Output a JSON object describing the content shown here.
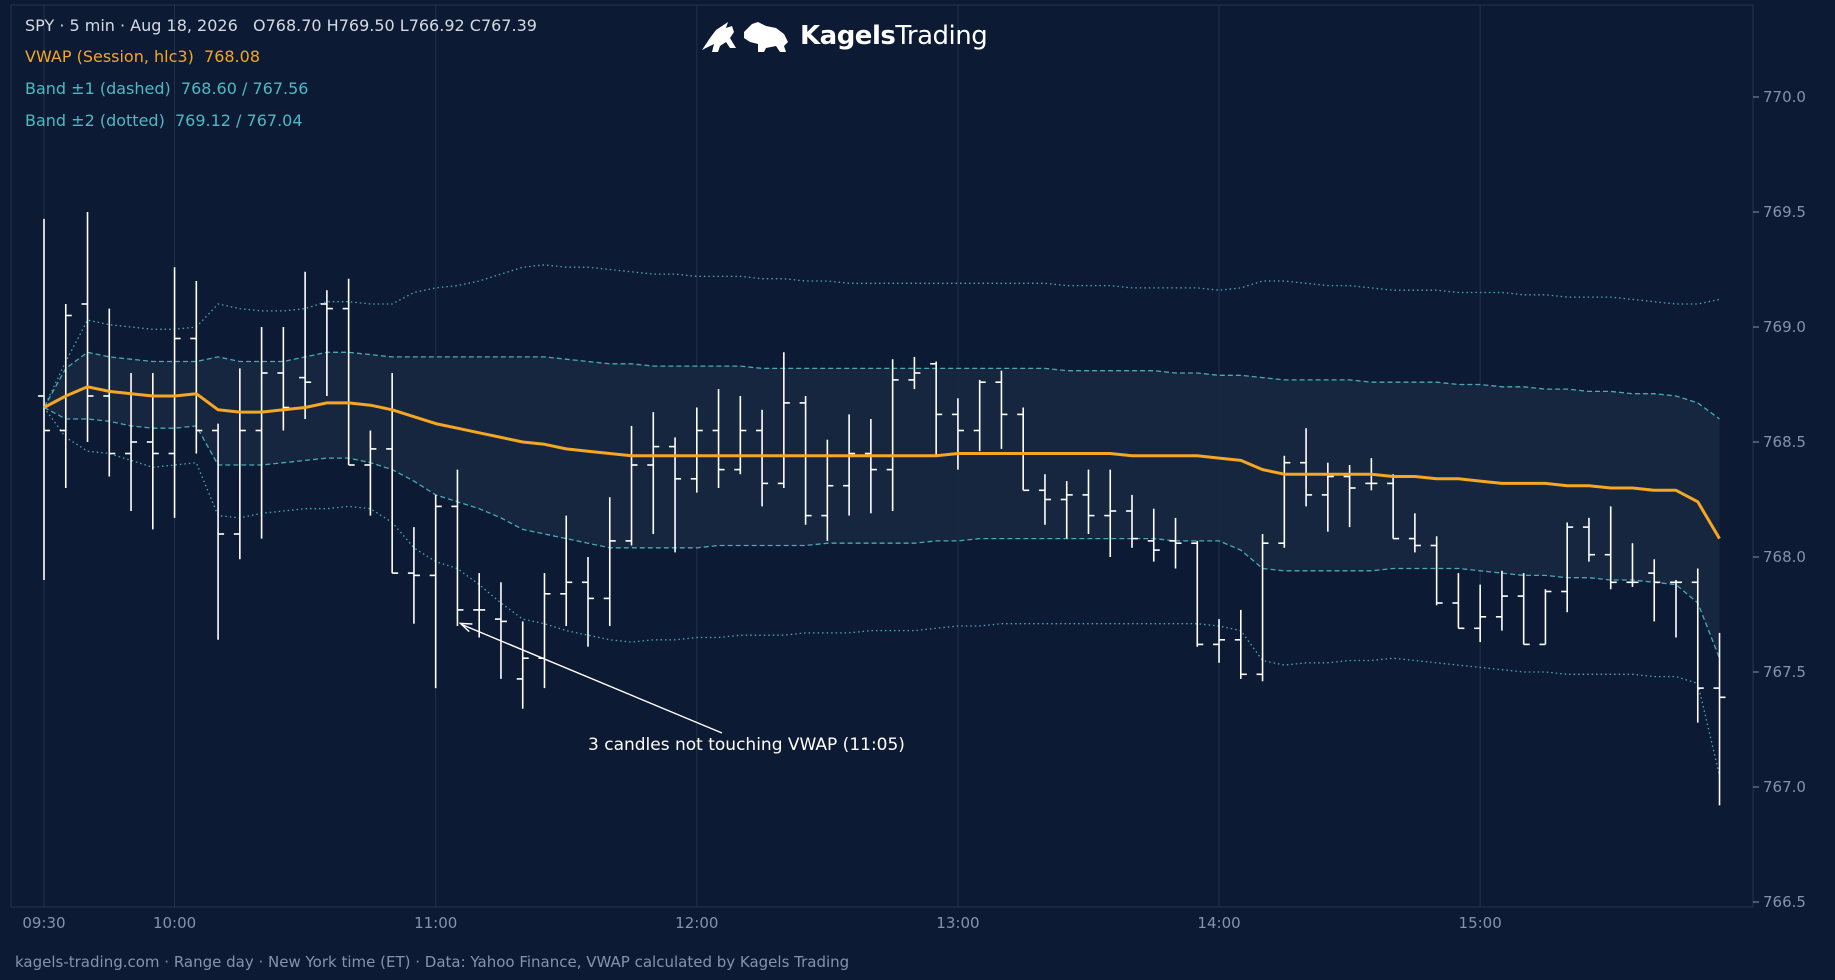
{
  "header": {
    "ohlc_line": "SPY · 5 min · Aug 18, 2026   O768.70 H769.50 L766.92 C767.39",
    "vwap_line": "VWAP (Session, hlc3)  768.08",
    "band1_line": "Band ±1 (dashed)  768.60 / 767.56",
    "band2_line": "Band ±2 (dotted)  769.12 / 767.04"
  },
  "brand": {
    "bold": "Kagels",
    "regular": "Trading",
    "logo_icon": "bull-bear-icon"
  },
  "footer": "kagels-trading.com · Range day · New York time (ET) · Data: Yahoo Finance, VWAP calculated by Kagels Trading",
  "colors": {
    "background": "#0d1a33",
    "vwap": "#f5a623",
    "bands": "#4fb8c4",
    "candles": "#ffffff",
    "band_fill": "#16283f",
    "text": "#d4dae4",
    "axis_text": "#8493ad"
  },
  "chart_data": {
    "type": "ohlc",
    "symbol": "SPY",
    "interval": "5 min",
    "date": "Aug 18, 2026",
    "ylim": [
      766.5,
      770.2
    ],
    "y_ticks": [
      "766.5",
      "767.0",
      "767.5",
      "768.0",
      "768.5",
      "769.0",
      "769.5",
      "770.0"
    ],
    "x_ticks": [
      {
        "label": "09:30",
        "t": "09:30"
      },
      {
        "label": "10:00",
        "t": "10:00"
      },
      {
        "label": "11:00",
        "t": "11:00"
      },
      {
        "label": "12:00",
        "t": "12:00"
      },
      {
        "label": "13:00",
        "t": "13:00"
      },
      {
        "label": "14:00",
        "t": "14:00"
      },
      {
        "label": "15:00",
        "t": "15:00"
      }
    ],
    "grid": true,
    "candles": [
      {
        "t": "09:30",
        "o": 768.7,
        "h": 769.47,
        "l": 767.9,
        "c": 768.55
      },
      {
        "t": "09:35",
        "o": 768.55,
        "h": 769.1,
        "l": 768.3,
        "c": 769.05
      },
      {
        "t": "09:40",
        "o": 769.1,
        "h": 769.5,
        "l": 768.5,
        "c": 768.7
      },
      {
        "t": "09:45",
        "o": 768.7,
        "h": 769.08,
        "l": 768.35,
        "c": 768.45
      },
      {
        "t": "09:50",
        "o": 768.45,
        "h": 768.8,
        "l": 768.2,
        "c": 768.5
      },
      {
        "t": "09:55",
        "o": 768.5,
        "h": 768.8,
        "l": 768.12,
        "c": 768.45
      },
      {
        "t": "10:00",
        "o": 768.45,
        "h": 769.26,
        "l": 768.17,
        "c": 768.95
      },
      {
        "t": "10:05",
        "o": 768.95,
        "h": 769.2,
        "l": 768.45,
        "c": 768.55
      },
      {
        "t": "10:10",
        "o": 768.55,
        "h": 768.58,
        "l": 767.64,
        "c": 768.1
      },
      {
        "t": "10:15",
        "o": 768.1,
        "h": 768.82,
        "l": 767.99,
        "c": 768.55
      },
      {
        "t": "10:20",
        "o": 768.55,
        "h": 769.0,
        "l": 768.08,
        "c": 768.8
      },
      {
        "t": "10:25",
        "o": 768.8,
        "h": 769.0,
        "l": 768.55,
        "c": 768.65
      },
      {
        "t": "10:30",
        "o": 768.78,
        "h": 769.24,
        "l": 768.6,
        "c": 768.76
      },
      {
        "t": "10:35",
        "o": 769.1,
        "h": 769.16,
        "l": 768.7,
        "c": 769.08
      },
      {
        "t": "10:40",
        "o": 769.08,
        "h": 769.21,
        "l": 768.4,
        "c": 768.4
      },
      {
        "t": "10:45",
        "o": 768.4,
        "h": 768.55,
        "l": 768.18,
        "c": 768.47
      },
      {
        "t": "10:50",
        "o": 768.47,
        "h": 768.8,
        "l": 767.93,
        "c": 767.93
      },
      {
        "t": "10:55",
        "o": 767.93,
        "h": 768.13,
        "l": 767.71,
        "c": 767.92
      },
      {
        "t": "11:00",
        "o": 767.92,
        "h": 768.27,
        "l": 767.43,
        "c": 768.22
      },
      {
        "t": "11:05",
        "o": 768.22,
        "h": 768.38,
        "l": 767.7,
        "c": 767.77
      },
      {
        "t": "11:10",
        "o": 767.77,
        "h": 767.93,
        "l": 767.65,
        "c": 767.77
      },
      {
        "t": "11:15",
        "o": 767.73,
        "h": 767.89,
        "l": 767.47,
        "c": 767.72
      },
      {
        "t": "11:20",
        "o": 767.47,
        "h": 767.72,
        "l": 767.34,
        "c": 767.56
      },
      {
        "t": "11:25",
        "o": 767.56,
        "h": 767.93,
        "l": 767.43,
        "c": 767.84
      },
      {
        "t": "11:30",
        "o": 767.84,
        "h": 768.18,
        "l": 767.7,
        "c": 767.89
      },
      {
        "t": "11:35",
        "o": 767.89,
        "h": 768.0,
        "l": 767.61,
        "c": 767.82
      },
      {
        "t": "11:40",
        "o": 767.82,
        "h": 768.26,
        "l": 767.7,
        "c": 768.07
      },
      {
        "t": "11:45",
        "o": 768.07,
        "h": 768.57,
        "l": 768.05,
        "c": 768.4
      },
      {
        "t": "11:50",
        "o": 768.4,
        "h": 768.63,
        "l": 768.1,
        "c": 768.48
      },
      {
        "t": "11:55",
        "o": 768.48,
        "h": 768.52,
        "l": 768.02,
        "c": 768.34
      },
      {
        "t": "12:00",
        "o": 768.34,
        "h": 768.65,
        "l": 768.28,
        "c": 768.55
      },
      {
        "t": "12:05",
        "o": 768.55,
        "h": 768.73,
        "l": 768.3,
        "c": 768.38
      },
      {
        "t": "12:10",
        "o": 768.38,
        "h": 768.7,
        "l": 768.36,
        "c": 768.55
      },
      {
        "t": "12:15",
        "o": 768.55,
        "h": 768.64,
        "l": 768.22,
        "c": 768.32
      },
      {
        "t": "12:20",
        "o": 768.32,
        "h": 768.89,
        "l": 768.3,
        "c": 768.67
      },
      {
        "t": "12:25",
        "o": 768.67,
        "h": 768.7,
        "l": 768.14,
        "c": 768.18
      },
      {
        "t": "12:30",
        "o": 768.18,
        "h": 768.51,
        "l": 768.07,
        "c": 768.31
      },
      {
        "t": "12:35",
        "o": 768.31,
        "h": 768.62,
        "l": 768.18,
        "c": 768.45
      },
      {
        "t": "12:40",
        "o": 768.45,
        "h": 768.6,
        "l": 768.19,
        "c": 768.38
      },
      {
        "t": "12:45",
        "o": 768.38,
        "h": 768.86,
        "l": 768.2,
        "c": 768.77
      },
      {
        "t": "12:50",
        "o": 768.77,
        "h": 768.87,
        "l": 768.73,
        "c": 768.8
      },
      {
        "t": "12:55",
        "o": 768.84,
        "h": 768.85,
        "l": 768.44,
        "c": 768.62
      },
      {
        "t": "13:00",
        "o": 768.62,
        "h": 768.69,
        "l": 768.38,
        "c": 768.55
      },
      {
        "t": "13:05",
        "o": 768.55,
        "h": 768.77,
        "l": 768.46,
        "c": 768.76
      },
      {
        "t": "13:10",
        "o": 768.76,
        "h": 768.81,
        "l": 768.47,
        "c": 768.62
      },
      {
        "t": "13:15",
        "o": 768.62,
        "h": 768.65,
        "l": 768.29,
        "c": 768.29
      },
      {
        "t": "13:20",
        "o": 768.29,
        "h": 768.36,
        "l": 768.14,
        "c": 768.25
      },
      {
        "t": "13:25",
        "o": 768.25,
        "h": 768.33,
        "l": 768.08,
        "c": 768.27
      },
      {
        "t": "13:30",
        "o": 768.27,
        "h": 768.38,
        "l": 768.1,
        "c": 768.18
      },
      {
        "t": "13:35",
        "o": 768.18,
        "h": 768.38,
        "l": 768.0,
        "c": 768.2
      },
      {
        "t": "13:40",
        "o": 768.2,
        "h": 768.27,
        "l": 768.04,
        "c": 768.08
      },
      {
        "t": "13:45",
        "o": 768.07,
        "h": 768.21,
        "l": 767.98,
        "c": 768.03
      },
      {
        "t": "13:50",
        "o": 768.07,
        "h": 768.17,
        "l": 767.95,
        "c": 768.06
      },
      {
        "t": "13:55",
        "o": 768.06,
        "h": 768.07,
        "l": 767.61,
        "c": 767.62
      },
      {
        "t": "14:00",
        "o": 767.62,
        "h": 767.73,
        "l": 767.54,
        "c": 767.64
      },
      {
        "t": "14:05",
        "o": 767.64,
        "h": 767.77,
        "l": 767.47,
        "c": 767.49
      },
      {
        "t": "14:10",
        "o": 767.49,
        "h": 768.1,
        "l": 767.46,
        "c": 768.06
      },
      {
        "t": "14:15",
        "o": 768.06,
        "h": 768.44,
        "l": 768.04,
        "c": 768.41
      },
      {
        "t": "14:20",
        "o": 768.41,
        "h": 768.56,
        "l": 768.22,
        "c": 768.27
      },
      {
        "t": "14:25",
        "o": 768.27,
        "h": 768.41,
        "l": 768.11,
        "c": 768.35
      },
      {
        "t": "14:30",
        "o": 768.35,
        "h": 768.4,
        "l": 768.13,
        "c": 768.3
      },
      {
        "t": "14:35",
        "o": 768.32,
        "h": 768.43,
        "l": 768.29,
        "c": 768.32
      },
      {
        "t": "14:40",
        "o": 768.32,
        "h": 768.36,
        "l": 768.08,
        "c": 768.08
      },
      {
        "t": "14:45",
        "o": 768.08,
        "h": 768.19,
        "l": 768.02,
        "c": 768.05
      },
      {
        "t": "14:50",
        "o": 768.05,
        "h": 768.09,
        "l": 767.79,
        "c": 767.8
      },
      {
        "t": "14:55",
        "o": 767.8,
        "h": 767.93,
        "l": 767.69,
        "c": 767.69
      },
      {
        "t": "15:00",
        "o": 767.69,
        "h": 767.88,
        "l": 767.63,
        "c": 767.74
      },
      {
        "t": "15:05",
        "o": 767.74,
        "h": 767.94,
        "l": 767.68,
        "c": 767.83
      },
      {
        "t": "15:10",
        "o": 767.83,
        "h": 767.93,
        "l": 767.62,
        "c": 767.62
      },
      {
        "t": "15:15",
        "o": 767.62,
        "h": 767.86,
        "l": 767.62,
        "c": 767.85
      },
      {
        "t": "15:20",
        "o": 767.85,
        "h": 768.15,
        "l": 767.76,
        "c": 768.13
      },
      {
        "t": "15:25",
        "o": 768.13,
        "h": 768.17,
        "l": 767.98,
        "c": 768.01
      },
      {
        "t": "15:30",
        "o": 768.01,
        "h": 768.22,
        "l": 767.86,
        "c": 767.89
      },
      {
        "t": "15:35",
        "o": 767.89,
        "h": 768.06,
        "l": 767.87,
        "c": 767.89
      },
      {
        "t": "15:40",
        "o": 767.93,
        "h": 767.99,
        "l": 767.72,
        "c": 767.89
      },
      {
        "t": "15:45",
        "o": 767.89,
        "h": 767.9,
        "l": 767.65,
        "c": 767.89
      },
      {
        "t": "15:50",
        "o": 767.89,
        "h": 767.95,
        "l": 767.28,
        "c": 767.43
      },
      {
        "t": "15:55",
        "o": 767.43,
        "h": 767.67,
        "l": 766.92,
        "c": 767.39
      }
    ],
    "vwap": [
      768.65,
      768.7,
      768.74,
      768.72,
      768.71,
      768.7,
      768.7,
      768.71,
      768.64,
      768.63,
      768.63,
      768.64,
      768.65,
      768.67,
      768.67,
      768.66,
      768.64,
      768.61,
      768.58,
      768.56,
      768.54,
      768.52,
      768.5,
      768.49,
      768.47,
      768.46,
      768.45,
      768.44,
      768.44,
      768.44,
      768.44,
      768.44,
      768.44,
      768.44,
      768.44,
      768.44,
      768.44,
      768.44,
      768.44,
      768.44,
      768.44,
      768.44,
      768.45,
      768.45,
      768.45,
      768.45,
      768.45,
      768.45,
      768.45,
      768.45,
      768.44,
      768.44,
      768.44,
      768.44,
      768.43,
      768.42,
      768.38,
      768.36,
      768.36,
      768.36,
      768.36,
      768.36,
      768.35,
      768.35,
      768.34,
      768.34,
      768.33,
      768.32,
      768.32,
      768.32,
      768.31,
      768.31,
      768.3,
      768.3,
      768.29,
      768.29,
      768.24,
      768.08
    ],
    "band1_upper": [
      768.65,
      768.82,
      768.89,
      768.87,
      768.86,
      768.85,
      768.85,
      768.85,
      768.87,
      768.85,
      768.85,
      768.85,
      768.87,
      768.89,
      768.89,
      768.88,
      768.87,
      768.87,
      768.87,
      768.87,
      768.87,
      768.87,
      768.87,
      768.87,
      768.86,
      768.85,
      768.84,
      768.84,
      768.83,
      768.83,
      768.83,
      768.83,
      768.83,
      768.82,
      768.82,
      768.82,
      768.82,
      768.82,
      768.82,
      768.82,
      768.82,
      768.82,
      768.82,
      768.82,
      768.82,
      768.82,
      768.82,
      768.81,
      768.81,
      768.81,
      768.81,
      768.81,
      768.8,
      768.8,
      768.79,
      768.79,
      768.78,
      768.77,
      768.77,
      768.77,
      768.77,
      768.76,
      768.76,
      768.76,
      768.76,
      768.75,
      768.75,
      768.74,
      768.74,
      768.73,
      768.73,
      768.72,
      768.72,
      768.71,
      768.71,
      768.7,
      768.67,
      768.6
    ],
    "band1_lower": [
      768.65,
      768.6,
      768.6,
      768.59,
      768.57,
      768.56,
      768.56,
      768.57,
      768.4,
      768.4,
      768.4,
      768.41,
      768.42,
      768.43,
      768.43,
      768.41,
      768.38,
      768.33,
      768.27,
      768.24,
      768.21,
      768.17,
      768.12,
      768.1,
      768.08,
      768.06,
      768.04,
      768.04,
      768.04,
      768.04,
      768.04,
      768.05,
      768.05,
      768.05,
      768.05,
      768.05,
      768.06,
      768.06,
      768.06,
      768.06,
      768.06,
      768.07,
      768.07,
      768.08,
      768.08,
      768.08,
      768.08,
      768.08,
      768.08,
      768.08,
      768.08,
      768.08,
      768.07,
      768.07,
      768.07,
      768.03,
      767.95,
      767.94,
      767.94,
      767.94,
      767.94,
      767.94,
      767.95,
      767.95,
      767.95,
      767.95,
      767.94,
      767.93,
      767.92,
      767.92,
      767.91,
      767.91,
      767.9,
      767.9,
      767.89,
      767.88,
      767.8,
      767.56
    ],
    "band2_upper": [
      768.65,
      768.85,
      769.03,
      769.01,
      769.0,
      768.99,
      768.99,
      769.0,
      769.1,
      769.08,
      769.07,
      769.07,
      769.08,
      769.11,
      769.11,
      769.1,
      769.1,
      769.15,
      769.17,
      769.18,
      769.2,
      769.23,
      769.26,
      769.27,
      769.26,
      769.26,
      769.25,
      769.24,
      769.23,
      769.23,
      769.22,
      769.22,
      769.22,
      769.21,
      769.21,
      769.2,
      769.2,
      769.19,
      769.19,
      769.19,
      769.19,
      769.19,
      769.19,
      769.19,
      769.19,
      769.19,
      769.19,
      769.18,
      769.18,
      769.18,
      769.17,
      769.17,
      769.17,
      769.17,
      769.16,
      769.17,
      769.2,
      769.2,
      769.19,
      769.18,
      769.18,
      769.17,
      769.16,
      769.16,
      769.16,
      769.15,
      769.15,
      769.15,
      769.14,
      769.14,
      769.13,
      769.13,
      769.13,
      769.12,
      769.11,
      769.1,
      769.1,
      769.12
    ],
    "band2_lower": [
      768.65,
      768.52,
      768.46,
      768.45,
      768.42,
      768.39,
      768.4,
      768.41,
      768.18,
      768.17,
      768.19,
      768.2,
      768.21,
      768.21,
      768.22,
      768.21,
      768.15,
      768.04,
      767.98,
      767.95,
      767.88,
      767.8,
      767.73,
      767.71,
      767.68,
      767.66,
      767.64,
      767.63,
      767.64,
      767.64,
      767.65,
      767.65,
      767.66,
      767.66,
      767.66,
      767.67,
      767.67,
      767.67,
      767.68,
      767.68,
      767.68,
      767.69,
      767.7,
      767.7,
      767.71,
      767.71,
      767.71,
      767.71,
      767.71,
      767.71,
      767.71,
      767.71,
      767.71,
      767.71,
      767.7,
      767.68,
      767.55,
      767.53,
      767.54,
      767.54,
      767.55,
      767.55,
      767.56,
      767.55,
      767.54,
      767.53,
      767.52,
      767.51,
      767.5,
      767.5,
      767.49,
      767.49,
      767.49,
      767.49,
      767.48,
      767.48,
      767.45,
      767.05
    ],
    "annotation": {
      "text": "3 candles not touching VWAP (11:05)",
      "t": "11:05",
      "price": 767.72
    }
  }
}
